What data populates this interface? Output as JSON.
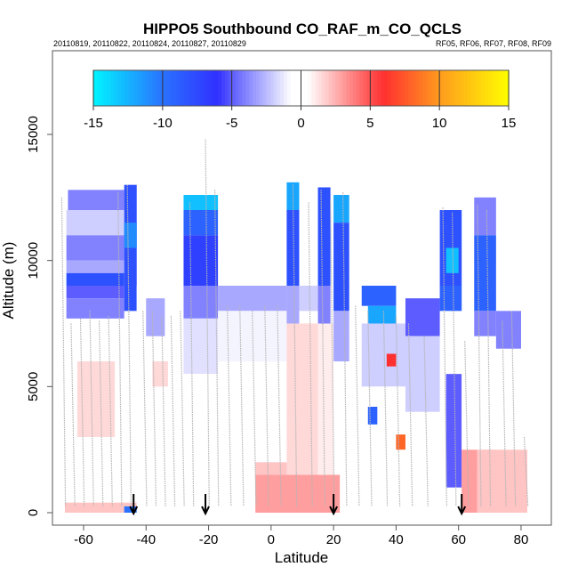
{
  "chart_data": {
    "type": "heatmap",
    "title": "HIPPO5 Southbound CO_RAF_m_CO_QCLS",
    "subtitle_left": "20110819, 20110822, 20110824, 20110827, 20110829",
    "subtitle_right": "RF05, RF06, RF07, RF08, RF09",
    "xlabel": "Latitude",
    "ylabel": "Altitude (m)",
    "xlim": [
      -70,
      89.7
    ],
    "ylim": [
      -490,
      18320
    ],
    "x_ticks": [
      -60,
      -40,
      -20,
      0,
      20,
      40,
      60,
      80
    ],
    "x_tick_labels": [
      "-60",
      "-40",
      "-20",
      "0",
      "20",
      "40",
      "60",
      "80"
    ],
    "y_ticks": [
      0,
      5000,
      10000,
      15000
    ],
    "y_tick_labels": [
      "0",
      "5000",
      "10000",
      "15000"
    ],
    "colorbar": {
      "range": [
        -15,
        15
      ],
      "ticks": [
        -15,
        -10,
        -5,
        0,
        5,
        10,
        15
      ],
      "tick_labels": [
        "-15",
        "-10",
        "-5",
        "0",
        "5",
        "10",
        "15"
      ],
      "stops": [
        [
          -15,
          "#00f5ff"
        ],
        [
          -10,
          "#2a72ff"
        ],
        [
          -6,
          "#3030ff"
        ],
        [
          -5,
          "#5c5cff"
        ],
        [
          -0.7,
          "#ffffff"
        ],
        [
          0.5,
          "#ffffff"
        ],
        [
          5,
          "#ff5050"
        ],
        [
          6,
          "#ff3030"
        ],
        [
          10,
          "#ff9a1e"
        ],
        [
          15,
          "#ffff00"
        ]
      ]
    },
    "cells_columns": [
      "lat_start",
      "lat_end",
      "alt_start",
      "alt_end",
      "value"
    ],
    "cells": [
      [
        -66,
        -43,
        0,
        7700,
        0.3
      ],
      [
        -65,
        -47,
        12000,
        12800,
        -4
      ],
      [
        -65.5,
        -47,
        11000,
        12000,
        -2
      ],
      [
        -65.5,
        -47,
        10000,
        11000,
        -4
      ],
      [
        -65.5,
        -47,
        9500,
        10000,
        -3
      ],
      [
        -65.5,
        -47,
        9000,
        9500,
        -8
      ],
      [
        -65.5,
        -47,
        8500,
        9000,
        -5
      ],
      [
        -65.5,
        -47,
        7700,
        8500,
        -4
      ],
      [
        -47,
        -43,
        8000,
        13000,
        -8
      ],
      [
        -47,
        -43,
        10500,
        11500,
        -11
      ],
      [
        -62,
        -50,
        3000,
        6000,
        1.5
      ],
      [
        -66,
        -43,
        0,
        400,
        2
      ],
      [
        -47,
        -42,
        0,
        250,
        -10
      ],
      [
        -43,
        -27,
        0,
        9000,
        0.4
      ],
      [
        -40,
        -34,
        7000,
        8500,
        -3
      ],
      [
        -38,
        -33,
        5000,
        6000,
        1.5
      ],
      [
        -28,
        -17,
        12000,
        12600,
        -13
      ],
      [
        -28,
        -17,
        11000,
        12000,
        -9
      ],
      [
        -28,
        -17,
        9000,
        11000,
        -7
      ],
      [
        -28,
        -17,
        7700,
        9000,
        -4
      ],
      [
        -28,
        -17,
        5500,
        7700,
        -1.5
      ],
      [
        -28,
        -17,
        0,
        5500,
        0.3
      ],
      [
        -17,
        5,
        8000,
        9000,
        -3
      ],
      [
        -17,
        5,
        6000,
        8000,
        -1
      ],
      [
        -17,
        5,
        0,
        6000,
        0.4
      ],
      [
        -5,
        5,
        0,
        2000,
        2
      ],
      [
        5,
        9,
        12000,
        13100,
        -12
      ],
      [
        5,
        9,
        9000,
        12000,
        -8
      ],
      [
        5,
        9,
        7500,
        9000,
        -3
      ],
      [
        5,
        15,
        0,
        7500,
        1.5
      ],
      [
        9,
        15,
        8000,
        9000,
        -2
      ],
      [
        15,
        19,
        9000,
        12900,
        -8
      ],
      [
        15,
        19,
        7500,
        9000,
        -4
      ],
      [
        15,
        20,
        0,
        7500,
        1
      ],
      [
        20,
        25,
        11500,
        12600,
        -12
      ],
      [
        20,
        25,
        8000,
        11500,
        -8
      ],
      [
        20,
        25,
        6000,
        8000,
        -3
      ],
      [
        20,
        29,
        0,
        6000,
        0.5
      ],
      [
        -5,
        22,
        0,
        1500,
        3
      ],
      [
        29,
        40,
        8200,
        9000,
        -9
      ],
      [
        31,
        40,
        7500,
        8200,
        -12
      ],
      [
        29,
        43,
        5000,
        7500,
        -2
      ],
      [
        29,
        54,
        0,
        5000,
        0.5
      ],
      [
        31,
        34,
        3500,
        4200,
        -9
      ],
      [
        40,
        43,
        2500,
        3100,
        8
      ],
      [
        37,
        40,
        5800,
        6300,
        6
      ],
      [
        43,
        54,
        7000,
        8500,
        -5
      ],
      [
        43,
        54,
        4000,
        7000,
        -2
      ],
      [
        54,
        61,
        9000,
        12000,
        -8
      ],
      [
        54,
        61,
        8000,
        9000,
        -9
      ],
      [
        56,
        60,
        9500,
        10500,
        -13
      ],
      [
        56,
        61,
        1000,
        5500,
        -5
      ],
      [
        61,
        66,
        0,
        2500,
        3
      ],
      [
        61,
        66,
        2500,
        6000,
        0.5
      ],
      [
        65,
        72,
        11000,
        12500,
        -4
      ],
      [
        65,
        72,
        8000,
        11000,
        -9
      ],
      [
        65,
        72,
        7000,
        8000,
        -4
      ],
      [
        66,
        82,
        0,
        2500,
        2
      ],
      [
        72,
        80,
        6500,
        8000,
        -4
      ],
      [
        72,
        82,
        2500,
        6500,
        0.4
      ]
    ],
    "profiles": [
      [
        -67,
        12500
      ],
      [
        -64,
        7500
      ],
      [
        -61,
        7700
      ],
      [
        -58,
        8000
      ],
      [
        -55,
        7600
      ],
      [
        -52,
        7800
      ],
      [
        -49,
        12700
      ],
      [
        -46,
        13000
      ],
      [
        -41,
        8000
      ],
      [
        -38,
        8000
      ],
      [
        -35,
        7800
      ],
      [
        -32,
        7800
      ],
      [
        -29,
        8000
      ],
      [
        -26,
        12300
      ],
      [
        -21,
        14800
      ],
      [
        -18,
        12800
      ],
      [
        -14,
        8200
      ],
      [
        -10,
        8200
      ],
      [
        -6,
        8000
      ],
      [
        -2,
        8200
      ],
      [
        2,
        8200
      ],
      [
        7,
        13000
      ],
      [
        12,
        12300
      ],
      [
        16,
        12800
      ],
      [
        19,
        12400
      ],
      [
        23,
        12700
      ],
      [
        27,
        8200
      ],
      [
        31,
        8000
      ],
      [
        36,
        8000
      ],
      [
        40,
        7800
      ],
      [
        44,
        7500
      ],
      [
        49,
        7000
      ],
      [
        55,
        12100
      ],
      [
        58,
        11900
      ],
      [
        62,
        6800
      ],
      [
        66,
        12200
      ],
      [
        69,
        12000
      ],
      [
        74,
        7600
      ],
      [
        77,
        8000
      ],
      [
        81,
        3000
      ]
    ],
    "arrows_lat": [
      -44,
      -21,
      20,
      61
    ]
  }
}
